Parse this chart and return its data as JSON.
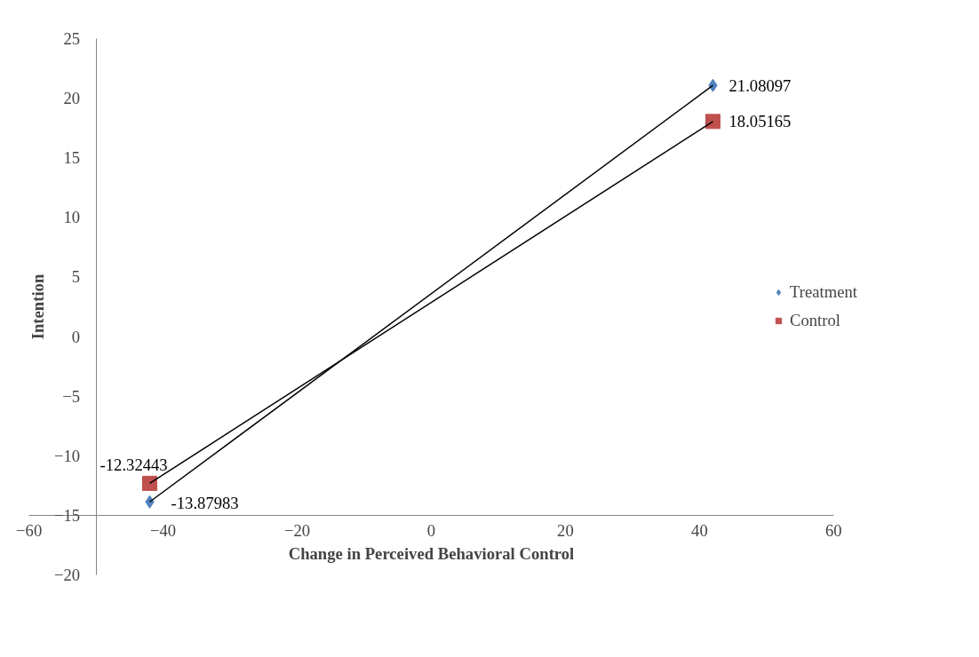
{
  "chart_data": {
    "type": "scatter",
    "xlabel": "Change in Perceived Behavioral Control",
    "ylabel": "Intention",
    "x": [
      -42,
      42
    ],
    "series": [
      {
        "name": "Treatment",
        "marker": "diamond",
        "color": "#4f81bd",
        "values": [
          -13.87983,
          21.08097
        ]
      },
      {
        "name": "Control",
        "marker": "square",
        "color": "#c0504d",
        "values": [
          -12.32443,
          18.05165
        ]
      },
      {
        "type": "line",
        "marker": "none",
        "color": "#000000",
        "values": [
          -13.87983,
          21.08097
        ],
        "value_labels": [
          null,
          null
        ]
      },
      {
        "type": "line",
        "marker": "none",
        "color": "#000000",
        "values": [
          -12.32443,
          18.05165
        ],
        "value_labels": [
          null,
          null
        ]
      }
    ],
    "data_labels": true,
    "xlim": [
      -60,
      60
    ],
    "xticks": [
      -60,
      -40,
      -20,
      0,
      20,
      40,
      60
    ],
    "ylim": [
      -20,
      25
    ],
    "yticks": [
      -20,
      -15,
      -10,
      -5,
      0,
      5,
      10,
      15,
      20,
      25
    ],
    "grid": false,
    "legend": "right"
  }
}
